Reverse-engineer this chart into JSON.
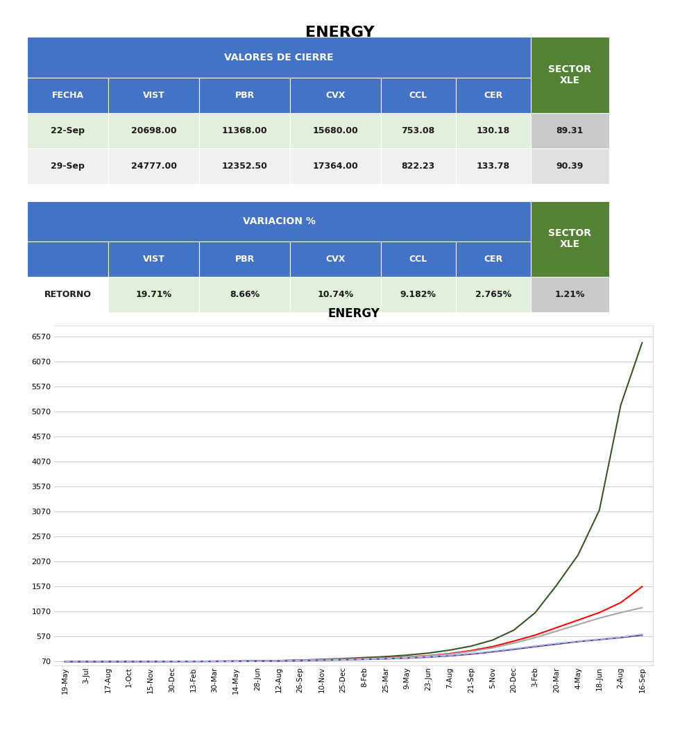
{
  "title": "ENERGY",
  "table1_header_main": "VALORES DE CIERRE",
  "table1_header_sector": "SECTOR",
  "table1_header_sector2": "XLE",
  "table1_cols": [
    "FECHA",
    "VIST",
    "PBR",
    "CVX",
    "CCL",
    "CER"
  ],
  "table1_rows": [
    [
      "22-Sep",
      "20698.00",
      "11368.00",
      "15680.00",
      "753.08",
      "130.18",
      "89.31"
    ],
    [
      "29-Sep",
      "24777.00",
      "12352.50",
      "17364.00",
      "822.23",
      "133.78",
      "90.39"
    ]
  ],
  "table2_header_main": "VARIACION %",
  "table2_header_sector": "SECTOR",
  "table2_header_sector2": "XLE",
  "table2_cols": [
    "",
    "VIST",
    "PBR",
    "CVX",
    "CCL",
    "CER"
  ],
  "table2_rows": [
    [
      "RETORNO",
      "19.71%",
      "8.66%",
      "10.74%",
      "9.182%",
      "2.765%",
      "1.21%"
    ]
  ],
  "chart_title": "ENERGY",
  "x_labels": [
    "19-May",
    "3-Jul",
    "17-Aug",
    "1-Oct",
    "15-Nov",
    "30-Dec",
    "13-Feb",
    "30-Mar",
    "14-May",
    "28-Jun",
    "12-Aug",
    "26-Sep",
    "10-Nov",
    "25-Dec",
    "8-Feb",
    "25-Mar",
    "9-May",
    "23-Jun",
    "7-Aug",
    "21-Sep",
    "5-Nov",
    "20-Dec",
    "3-Feb",
    "20-Mar",
    "4-May",
    "18-Jun",
    "2-Aug",
    "16-Sep"
  ],
  "y_ticks": [
    70,
    570,
    1070,
    1570,
    2070,
    2570,
    3070,
    3570,
    4070,
    4570,
    5070,
    5570,
    6070,
    6570
  ],
  "header_blue": "#4472C4",
  "header_green": "#538135",
  "row1_bg": "#E2EFDA",
  "row2_bg": "#F0F0F0",
  "sector_row1_bg": "#C9C9C9",
  "sector_row2_bg": "#E0E0E0",
  "line_colors": {
    "VIST": "#375623",
    "PBR": "#FF0000",
    "CVX": "#A6A6A6",
    "CCL": "#7030A0",
    "CER": "#9DC3E6"
  },
  "vist_data": [
    70,
    71,
    72,
    73,
    74,
    75,
    76,
    78,
    80,
    85,
    90,
    100,
    115,
    130,
    150,
    170,
    200,
    240,
    300,
    380,
    500,
    700,
    1050,
    1600,
    2200,
    3100,
    5200,
    6450
  ],
  "pbr_data": [
    70,
    71,
    71,
    72,
    73,
    74,
    75,
    76,
    78,
    82,
    88,
    96,
    108,
    118,
    130,
    145,
    165,
    190,
    230,
    290,
    370,
    480,
    600,
    750,
    900,
    1050,
    1250,
    1570
  ],
  "cvx_data": [
    70,
    71,
    71,
    72,
    73,
    74,
    75,
    76,
    78,
    82,
    88,
    96,
    106,
    116,
    128,
    142,
    160,
    185,
    220,
    275,
    345,
    440,
    550,
    680,
    810,
    940,
    1050,
    1150
  ],
  "ccl_data": [
    70,
    70,
    71,
    71,
    72,
    73,
    73,
    74,
    75,
    78,
    82,
    88,
    96,
    104,
    114,
    125,
    140,
    160,
    185,
    220,
    265,
    315,
    370,
    420,
    470,
    510,
    550,
    600
  ],
  "cer_data": [
    70,
    70,
    71,
    71,
    72,
    73,
    73,
    74,
    75,
    78,
    83,
    90,
    99,
    108,
    118,
    130,
    147,
    168,
    196,
    233,
    278,
    330,
    385,
    435,
    480,
    520,
    560,
    620
  ]
}
